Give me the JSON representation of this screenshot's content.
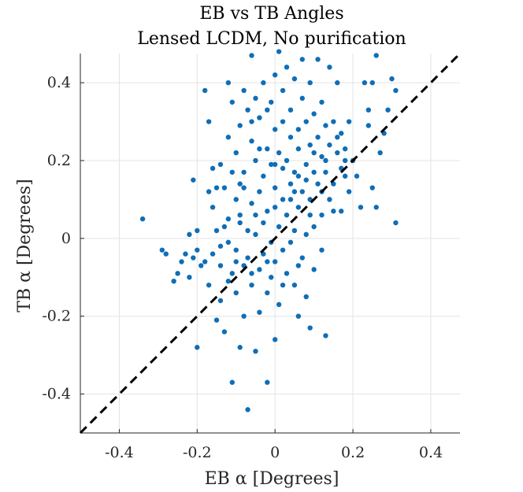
{
  "chart_data": {
    "type": "scatter",
    "title": "EB vs TB Angles",
    "subtitle": "Lensed LCDM, No purification",
    "xlabel": "EB α [Degrees]",
    "ylabel": "TB α [Degrees]",
    "xlim": [
      -0.5,
      0.475
    ],
    "ylim": [
      -0.5,
      0.475
    ],
    "xticks": [
      -0.4,
      -0.2,
      0,
      0.2,
      0.4
    ],
    "xtick_labels": [
      "-0.4",
      "-0.2",
      "0",
      "0.2",
      "0.4"
    ],
    "yticks": [
      -0.4,
      -0.2,
      0,
      0.2,
      0.4
    ],
    "ytick_labels": [
      "-0.4",
      "-0.2",
      "0",
      "0.2",
      "0.4"
    ],
    "grid": true,
    "reference_line": {
      "style": "dashed",
      "color": "#000000",
      "slope": 1,
      "intercept": 0
    },
    "marker_color": "#0f6eb6",
    "points": [
      [
        -0.34,
        0.05
      ],
      [
        -0.29,
        -0.03
      ],
      [
        -0.28,
        -0.04
      ],
      [
        -0.26,
        -0.11
      ],
      [
        -0.25,
        -0.09
      ],
      [
        -0.24,
        -0.06
      ],
      [
        -0.23,
        -0.04
      ],
      [
        -0.22,
        0.01
      ],
      [
        -0.22,
        -0.1
      ],
      [
        -0.21,
        0.15
      ],
      [
        -0.21,
        -0.05
      ],
      [
        -0.2,
        -0.03
      ],
      [
        -0.2,
        -0.28
      ],
      [
        -0.2,
        0.02
      ],
      [
        -0.19,
        -0.07
      ],
      [
        -0.18,
        0.38
      ],
      [
        -0.18,
        -0.06
      ],
      [
        -0.17,
        0.3
      ],
      [
        -0.17,
        0.12
      ],
      [
        -0.17,
        -0.12
      ],
      [
        -0.16,
        0.18
      ],
      [
        -0.16,
        -0.04
      ],
      [
        -0.15,
        0.13
      ],
      [
        -0.15,
        -0.21
      ],
      [
        -0.15,
        0.02
      ],
      [
        -0.14,
        -0.07
      ],
      [
        -0.14,
        0.19
      ],
      [
        -0.14,
        -0.16
      ],
      [
        -0.13,
        0.03
      ],
      [
        -0.13,
        -0.24
      ],
      [
        -0.12,
        0.4
      ],
      [
        -0.12,
        0.26
      ],
      [
        -0.12,
        0.05
      ],
      [
        -0.12,
        -0.01
      ],
      [
        -0.11,
        0.17
      ],
      [
        -0.11,
        -0.09
      ],
      [
        -0.11,
        -0.37
      ],
      [
        -0.11,
        0.35
      ],
      [
        -0.1,
        0.22
      ],
      [
        -0.1,
        0.1
      ],
      [
        -0.1,
        -0.03
      ],
      [
        -0.1,
        -0.14
      ],
      [
        -0.09,
        -0.28
      ],
      [
        -0.09,
        0.29
      ],
      [
        -0.09,
        0.14
      ],
      [
        -0.09,
        0.06
      ],
      [
        -0.08,
        -0.07
      ],
      [
        -0.08,
        -0.2
      ],
      [
        -0.08,
        0.38
      ],
      [
        -0.08,
        0.17
      ],
      [
        -0.07,
        0.02
      ],
      [
        -0.07,
        -0.05
      ],
      [
        -0.07,
        -0.44
      ],
      [
        -0.07,
        0.33
      ],
      [
        -0.06,
        0.47
      ],
      [
        -0.06,
        0.25
      ],
      [
        -0.06,
        0.09
      ],
      [
        -0.06,
        -0.12
      ],
      [
        -0.05,
        -0.29
      ],
      [
        -0.05,
        0.2
      ],
      [
        -0.05,
        0.36
      ],
      [
        -0.05,
        0.01
      ],
      [
        -0.04,
        -0.08
      ],
      [
        -0.04,
        0.12
      ],
      [
        -0.04,
        -0.19
      ],
      [
        -0.04,
        0.31
      ],
      [
        -0.03,
        0.16
      ],
      [
        -0.03,
        0.04
      ],
      [
        -0.03,
        -0.04
      ],
      [
        -0.03,
        0.4
      ],
      [
        -0.02,
        0.23
      ],
      [
        -0.02,
        -0.14
      ],
      [
        -0.02,
        0.07
      ],
      [
        -0.02,
        -0.37
      ],
      [
        -0.01,
        0.35
      ],
      [
        -0.01,
        0.19
      ],
      [
        -0.01,
        -0.01
      ],
      [
        -0.01,
        -0.1
      ],
      [
        0.0,
        0.42
      ],
      [
        0.0,
        0.28
      ],
      [
        0.0,
        0.13
      ],
      [
        0.0,
        -0.06
      ],
      [
        0.0,
        -0.26
      ],
      [
        0.01,
        0.48
      ],
      [
        0.01,
        0.22
      ],
      [
        0.01,
        0.03
      ],
      [
        0.01,
        -0.17
      ],
      [
        0.02,
        0.38
      ],
      [
        0.02,
        0.1
      ],
      [
        0.02,
        -0.03
      ],
      [
        0.02,
        0.3
      ],
      [
        0.03,
        0.2
      ],
      [
        0.03,
        0.06
      ],
      [
        0.03,
        -0.09
      ],
      [
        0.03,
        0.44
      ],
      [
        0.04,
        0.26
      ],
      [
        0.04,
        0.14
      ],
      [
        0.04,
        -0.01
      ],
      [
        0.04,
        0.33
      ],
      [
        0.05,
        0.17
      ],
      [
        0.05,
        0.02
      ],
      [
        0.05,
        -0.12
      ],
      [
        0.05,
        0.41
      ],
      [
        0.06,
        0.28
      ],
      [
        0.06,
        0.08
      ],
      [
        0.06,
        -0.2
      ],
      [
        0.06,
        0.23
      ],
      [
        0.07,
        0.46
      ],
      [
        0.07,
        0.12
      ],
      [
        0.07,
        -0.05
      ],
      [
        0.07,
        0.36
      ],
      [
        0.08,
        0.19
      ],
      [
        0.08,
        0.01
      ],
      [
        0.08,
        0.3
      ],
      [
        0.08,
        -0.15
      ],
      [
        0.09,
        0.24
      ],
      [
        0.09,
        0.1
      ],
      [
        0.09,
        -0.23
      ],
      [
        0.09,
        0.4
      ],
      [
        0.1,
        0.17
      ],
      [
        0.1,
        0.03
      ],
      [
        0.1,
        0.32
      ],
      [
        0.1,
        -0.08
      ],
      [
        0.11,
        0.26
      ],
      [
        0.11,
        0.14
      ],
      [
        0.11,
        0.46
      ],
      [
        0.12,
        0.21
      ],
      [
        0.12,
        0.06
      ],
      [
        0.12,
        0.35
      ],
      [
        0.12,
        -0.03
      ],
      [
        0.13,
        -0.25
      ],
      [
        0.13,
        0.29
      ],
      [
        0.13,
        0.17
      ],
      [
        0.14,
        0.1
      ],
      [
        0.14,
        0.44
      ],
      [
        0.14,
        0.24
      ],
      [
        0.15,
        0.3
      ],
      [
        0.15,
        0.14
      ],
      [
        0.15,
        0.07
      ],
      [
        0.16,
        0.22
      ],
      [
        0.16,
        0.4
      ],
      [
        0.17,
        0.18
      ],
      [
        0.17,
        0.27
      ],
      [
        0.17,
        0.07
      ],
      [
        0.18,
        0.16
      ],
      [
        0.18,
        0.23
      ],
      [
        0.19,
        0.3
      ],
      [
        0.19,
        0.12
      ],
      [
        0.2,
        0.2
      ],
      [
        0.21,
        0.16
      ],
      [
        0.22,
        0.08
      ],
      [
        0.23,
        0.4
      ],
      [
        0.24,
        0.33
      ],
      [
        0.24,
        0.29
      ],
      [
        0.25,
        0.4
      ],
      [
        0.25,
        0.13
      ],
      [
        0.26,
        0.47
      ],
      [
        0.26,
        0.08
      ],
      [
        0.27,
        0.22
      ],
      [
        0.28,
        0.27
      ],
      [
        0.29,
        0.33
      ],
      [
        0.3,
        0.41
      ],
      [
        0.31,
        0.38
      ],
      [
        0.31,
        0.04
      ],
      [
        -0.06,
        0.3
      ],
      [
        -0.02,
        0.33
      ],
      [
        0.02,
        0.18
      ],
      [
        0.06,
        0.16
      ],
      [
        0.1,
        0.22
      ],
      [
        0.12,
        0.12
      ],
      [
        -0.08,
        0.13
      ],
      [
        -0.04,
        0.23
      ],
      [
        0.0,
        0.19
      ],
      [
        0.04,
        0.1
      ],
      [
        0.08,
        0.15
      ],
      [
        -0.1,
        -0.06
      ],
      [
        -0.06,
        -0.09
      ],
      [
        -0.02,
        -0.06
      ],
      [
        0.02,
        -0.12
      ],
      [
        0.06,
        -0.07
      ],
      [
        -0.14,
        -0.02
      ],
      [
        -0.12,
        -0.11
      ],
      [
        -0.16,
        0.08
      ],
      [
        -0.13,
        0.13
      ],
      [
        -0.09,
        0.04
      ],
      [
        -0.05,
        0.06
      ],
      [
        0.0,
        0.08
      ],
      [
        0.05,
        0.12
      ],
      [
        0.09,
        0.06
      ],
      [
        0.13,
        0.2
      ],
      [
        0.16,
        0.26
      ],
      [
        0.18,
        0.2
      ]
    ]
  }
}
